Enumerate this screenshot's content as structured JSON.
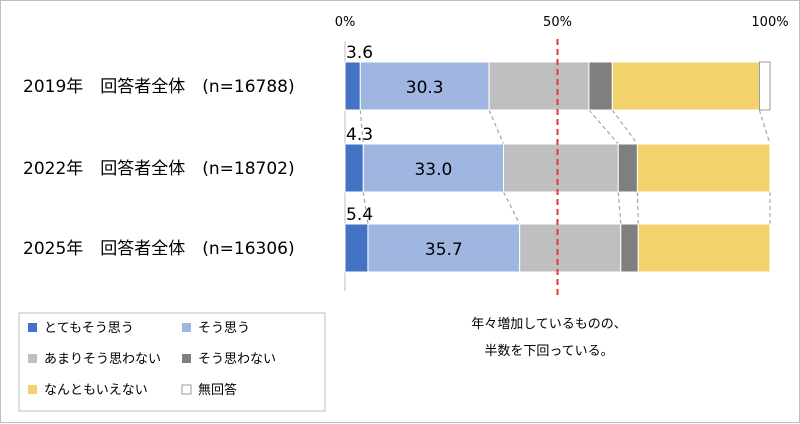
{
  "chart_data": {
    "type": "bar",
    "stacked": true,
    "orientation": "horizontal",
    "percent_stacked": true,
    "categories": [
      "2019年　回答者全体　(n=16788)",
      "2022年　回答者全体　(n=18702)",
      "2025年　回答者全体　(n=16306)"
    ],
    "series": [
      {
        "name": "とてもそう思う",
        "color": "#4472c4",
        "values": [
          3.6,
          4.3,
          5.4
        ]
      },
      {
        "name": "そう思う",
        "color": "#9fb6e0",
        "values": [
          30.3,
          33.0,
          35.7
        ]
      },
      {
        "name": "あまりそう思わない",
        "color": "#bfbfbf",
        "values": [
          23.5,
          27.0,
          23.8
        ]
      },
      {
        "name": "そう思わない",
        "color": "#7f7f7f",
        "values": [
          5.5,
          4.5,
          4.1
        ]
      },
      {
        "name": "なんともいえない",
        "color": "#f2d36b",
        "values": [
          34.6,
          31.2,
          31.0
        ]
      },
      {
        "name": "無回答",
        "color": "#ffffff",
        "values": [
          2.5,
          0.0,
          0.0
        ]
      }
    ],
    "labeled_values": [
      {
        "series": 0,
        "label_values": [
          "3.6",
          "4.3",
          "5.4"
        ]
      },
      {
        "series": 1,
        "label_values": [
          "30.3",
          "33.0",
          "35.7"
        ]
      }
    ],
    "xticks": [
      "0%",
      "50%",
      "100%"
    ],
    "xlim": [
      0,
      100
    ],
    "reference_line": {
      "value": 50,
      "color": "#e53935",
      "style": "dashed"
    },
    "annotation": [
      "年々増加しているものの、",
      "半数を下回っている。"
    ],
    "legend_position": "bottom-left"
  }
}
